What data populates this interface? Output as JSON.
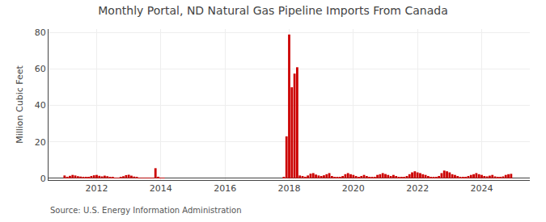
{
  "chart_data": {
    "type": "bar",
    "title": "Monthly Portal, ND Natural Gas Pipeline Imports From Canada",
    "y_label": "Million Cubic Feet",
    "annotations": [
      "Source: U.S. Energy Information Administration"
    ],
    "color": "#cc0000",
    "xlim": [
      2010.5,
      2025.5
    ],
    "xticks": [
      2012,
      2014,
      2016,
      2018,
      2020,
      2022,
      2024
    ],
    "ylim": [
      -1,
      82
    ],
    "yticks": [
      0,
      20,
      40,
      60,
      80
    ],
    "grid": true,
    "x": [
      2011.0,
      2011.083,
      2011.167,
      2011.25,
      2011.333,
      2011.417,
      2011.5,
      2011.583,
      2011.667,
      2011.75,
      2011.833,
      2011.917,
      2012.0,
      2012.083,
      2012.167,
      2012.25,
      2012.333,
      2012.417,
      2012.5,
      2012.583,
      2012.667,
      2012.75,
      2012.833,
      2012.917,
      2013.0,
      2013.083,
      2013.167,
      2013.25,
      2013.333,
      2013.417,
      2013.5,
      2013.583,
      2013.667,
      2013.75,
      2013.833,
      2013.917,
      2014.0,
      2014.083,
      2017.833,
      2017.917,
      2018.0,
      2018.083,
      2018.167,
      2018.25,
      2018.333,
      2018.417,
      2018.5,
      2018.583,
      2018.667,
      2018.75,
      2018.833,
      2018.917,
      2019.0,
      2019.083,
      2019.167,
      2019.25,
      2019.333,
      2019.417,
      2019.5,
      2019.583,
      2019.667,
      2019.75,
      2019.833,
      2019.917,
      2020.0,
      2020.083,
      2020.167,
      2020.25,
      2020.333,
      2020.417,
      2020.5,
      2020.583,
      2020.667,
      2020.75,
      2020.833,
      2020.917,
      2021.0,
      2021.083,
      2021.167,
      2021.25,
      2021.333,
      2021.417,
      2021.5,
      2021.583,
      2021.667,
      2021.75,
      2021.833,
      2021.917,
      2022.0,
      2022.083,
      2022.167,
      2022.25,
      2022.333,
      2022.417,
      2022.5,
      2022.583,
      2022.667,
      2022.75,
      2022.833,
      2022.917,
      2023.0,
      2023.083,
      2023.167,
      2023.25,
      2023.333,
      2023.417,
      2023.5,
      2023.583,
      2023.667,
      2023.75,
      2023.833,
      2023.917,
      2024.0,
      2024.083,
      2024.167,
      2024.25,
      2024.333,
      2024.417,
      2024.5,
      2024.583,
      2024.667,
      2024.75,
      2024.833,
      2024.917
    ],
    "values": [
      1.5,
      0.8,
      1.3,
      1.8,
      1.5,
      1.1,
      0.9,
      0.6,
      0.4,
      0.7,
      1.2,
      1.6,
      1.8,
      1.3,
      1.0,
      1.4,
      1.1,
      0.6,
      0.4,
      0.3,
      0.2,
      0.6,
      1.1,
      1.7,
      1.9,
      1.4,
      0.9,
      0.6,
      0.3,
      0.1,
      0.05,
      0.05,
      0.05,
      0.05,
      5.5,
      0.8,
      0.3,
      0.1,
      0.5,
      23.0,
      79.0,
      50.0,
      57.5,
      61.0,
      1.5,
      1.2,
      0.8,
      1.5,
      2.5,
      2.8,
      2.0,
      1.5,
      1.2,
      1.6,
      2.2,
      2.8,
      1.2,
      0.7,
      0.5,
      0.7,
      1.2,
      2.2,
      2.8,
      2.2,
      1.8,
      1.2,
      0.7,
      1.2,
      1.8,
      1.2,
      0.7,
      0.5,
      0.7,
      1.8,
      2.2,
      2.8,
      2.3,
      1.8,
      1.2,
      1.8,
      1.2,
      0.7,
      0.4,
      0.7,
      1.2,
      2.2,
      3.2,
      3.8,
      3.2,
      2.8,
      2.2,
      1.8,
      1.2,
      0.7,
      0.4,
      0.7,
      1.2,
      2.8,
      4.2,
      3.8,
      3.2,
      2.2,
      1.8,
      1.2,
      0.7,
      0.4,
      0.7,
      1.2,
      1.8,
      2.2,
      2.8,
      2.2,
      1.8,
      1.2,
      1.0,
      1.4,
      1.8,
      1.0,
      0.7,
      0.4,
      1.0,
      1.8,
      2.2,
      2.4
    ]
  }
}
